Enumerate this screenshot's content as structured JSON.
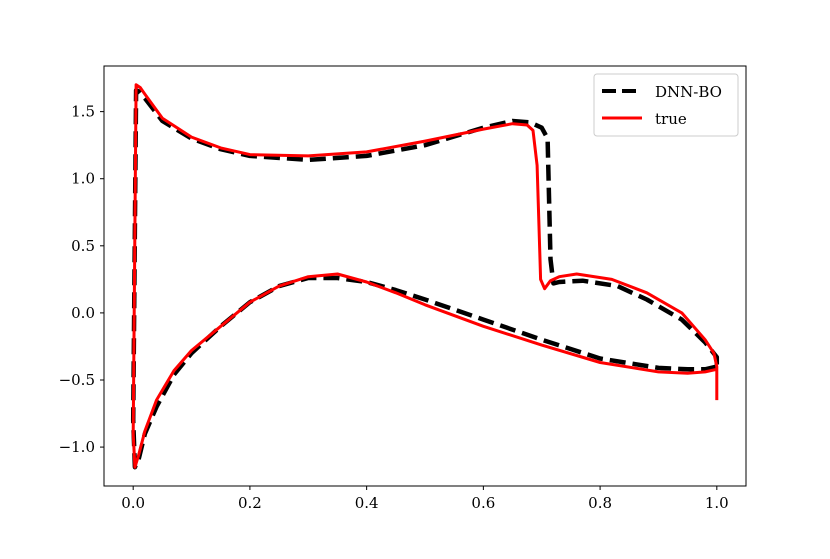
{
  "chart_data": {
    "type": "line",
    "title": "",
    "xlabel": "",
    "ylabel": "",
    "xlim": [
      -0.05,
      1.05
    ],
    "ylim": [
      -1.29,
      1.84
    ],
    "xticks": [
      0.0,
      0.2,
      0.4,
      0.6,
      0.8,
      1.0
    ],
    "xtick_labels": [
      "0.0",
      "0.2",
      "0.4",
      "0.6",
      "0.8",
      "1.0"
    ],
    "yticks": [
      -1.0,
      -0.5,
      0.0,
      0.5,
      1.0,
      1.5
    ],
    "ytick_labels": [
      "−1.0",
      "−0.5",
      "0.0",
      "0.5",
      "1.0",
      "1.5"
    ],
    "grid": false,
    "legend": "top-right",
    "series": [
      {
        "name": "DNN-BO",
        "color": "#000000",
        "style": "dashed",
        "x": [
          1.0,
          0.98,
          0.95,
          0.9,
          0.8,
          0.7,
          0.6,
          0.5,
          0.45,
          0.4,
          0.35,
          0.3,
          0.25,
          0.2,
          0.15,
          0.1,
          0.07,
          0.04,
          0.02,
          0.01,
          0.003,
          0.0,
          0.005,
          0.01,
          0.02,
          0.05,
          0.1,
          0.15,
          0.2,
          0.3,
          0.4,
          0.5,
          0.6,
          0.65,
          0.68,
          0.7,
          0.71,
          0.715,
          0.72,
          0.73,
          0.77,
          0.83,
          0.88,
          0.94,
          0.98,
          1.0,
          1.0
        ],
        "y": [
          -0.4,
          -0.42,
          -0.42,
          -0.41,
          -0.34,
          -0.2,
          -0.05,
          0.1,
          0.17,
          0.23,
          0.26,
          0.26,
          0.2,
          0.08,
          -0.1,
          -0.3,
          -0.46,
          -0.7,
          -0.9,
          -1.08,
          -1.15,
          -0.8,
          1.66,
          1.65,
          1.6,
          1.43,
          1.3,
          1.22,
          1.17,
          1.14,
          1.17,
          1.25,
          1.38,
          1.43,
          1.42,
          1.38,
          1.3,
          0.4,
          0.22,
          0.23,
          0.24,
          0.2,
          0.1,
          -0.05,
          -0.22,
          -0.33,
          -0.4
        ]
      },
      {
        "name": "true",
        "color": "#ff0000",
        "style": "solid",
        "x": [
          1.0,
          0.98,
          0.95,
          0.9,
          0.8,
          0.7,
          0.6,
          0.5,
          0.45,
          0.4,
          0.35,
          0.3,
          0.25,
          0.2,
          0.15,
          0.1,
          0.07,
          0.04,
          0.02,
          0.01,
          0.003,
          0.0,
          0.005,
          0.012,
          0.02,
          0.05,
          0.1,
          0.15,
          0.2,
          0.3,
          0.4,
          0.5,
          0.6,
          0.65,
          0.675,
          0.685,
          0.692,
          0.697,
          0.698,
          0.705,
          0.715,
          0.73,
          0.76,
          0.82,
          0.88,
          0.94,
          0.98,
          0.995,
          1.0,
          1.0
        ],
        "y": [
          -0.42,
          -0.44,
          -0.45,
          -0.44,
          -0.37,
          -0.24,
          -0.1,
          0.06,
          0.15,
          0.23,
          0.29,
          0.27,
          0.2,
          0.08,
          -0.1,
          -0.28,
          -0.43,
          -0.65,
          -0.88,
          -1.05,
          -1.15,
          -0.9,
          1.7,
          1.68,
          1.63,
          1.45,
          1.31,
          1.23,
          1.18,
          1.17,
          1.2,
          1.28,
          1.37,
          1.41,
          1.4,
          1.36,
          1.1,
          0.4,
          0.25,
          0.18,
          0.24,
          0.27,
          0.29,
          0.25,
          0.15,
          0.0,
          -0.2,
          -0.3,
          -0.4,
          -0.65
        ]
      }
    ]
  }
}
